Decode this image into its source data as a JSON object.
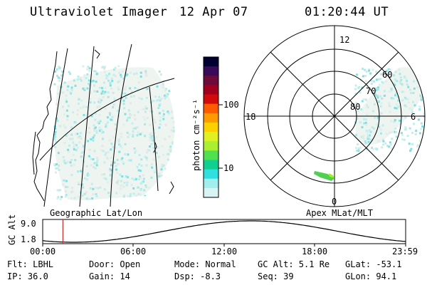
{
  "header": {
    "instrument": "Ultraviolet Imager",
    "date": "12 Apr 07",
    "time": "01:20:44 UT"
  },
  "colorbar": {
    "unit_label": "photon cm⁻²s⁻¹",
    "ticks": [
      "100",
      "10"
    ],
    "colors": [
      "#000033",
      "#3a0a5a",
      "#6e0a3a",
      "#a0001e",
      "#d20a0a",
      "#ff5a00",
      "#ff9a00",
      "#ffd000",
      "#e0f020",
      "#a8f030",
      "#50e050",
      "#10d090",
      "#30e0e0",
      "#a0eeee",
      "#d8f4f4"
    ]
  },
  "geo_map": {
    "label": "Geographic Lat/Lon"
  },
  "polar_plot": {
    "label": "Apex MLat/MLT",
    "mlt_labels": {
      "top": "12",
      "left": "18",
      "right": "6",
      "bottom": "0"
    },
    "lat_labels": [
      "60",
      "70",
      "80"
    ]
  },
  "timeline": {
    "ylabel": "GC Alt",
    "yticks": [
      "9.0",
      "1.8"
    ],
    "xticks": [
      "00:00",
      "06:00",
      "12:00",
      "18:00",
      "23:59"
    ],
    "marker_time": "01:20",
    "marker_color": "#c03030"
  },
  "footer": {
    "filter": "Flt: LBHL",
    "ip": "IP: 36.0",
    "door": "Door: Open",
    "gain": "Gain: 14",
    "mode": "Mode: Normal",
    "dsp": "Dsp:   -8.3",
    "gc_alt": "GC Alt: 5.1 Re",
    "seq": "Seq: 39",
    "glat": "GLat:  -53.1",
    "glon": "GLon:  94.1"
  }
}
